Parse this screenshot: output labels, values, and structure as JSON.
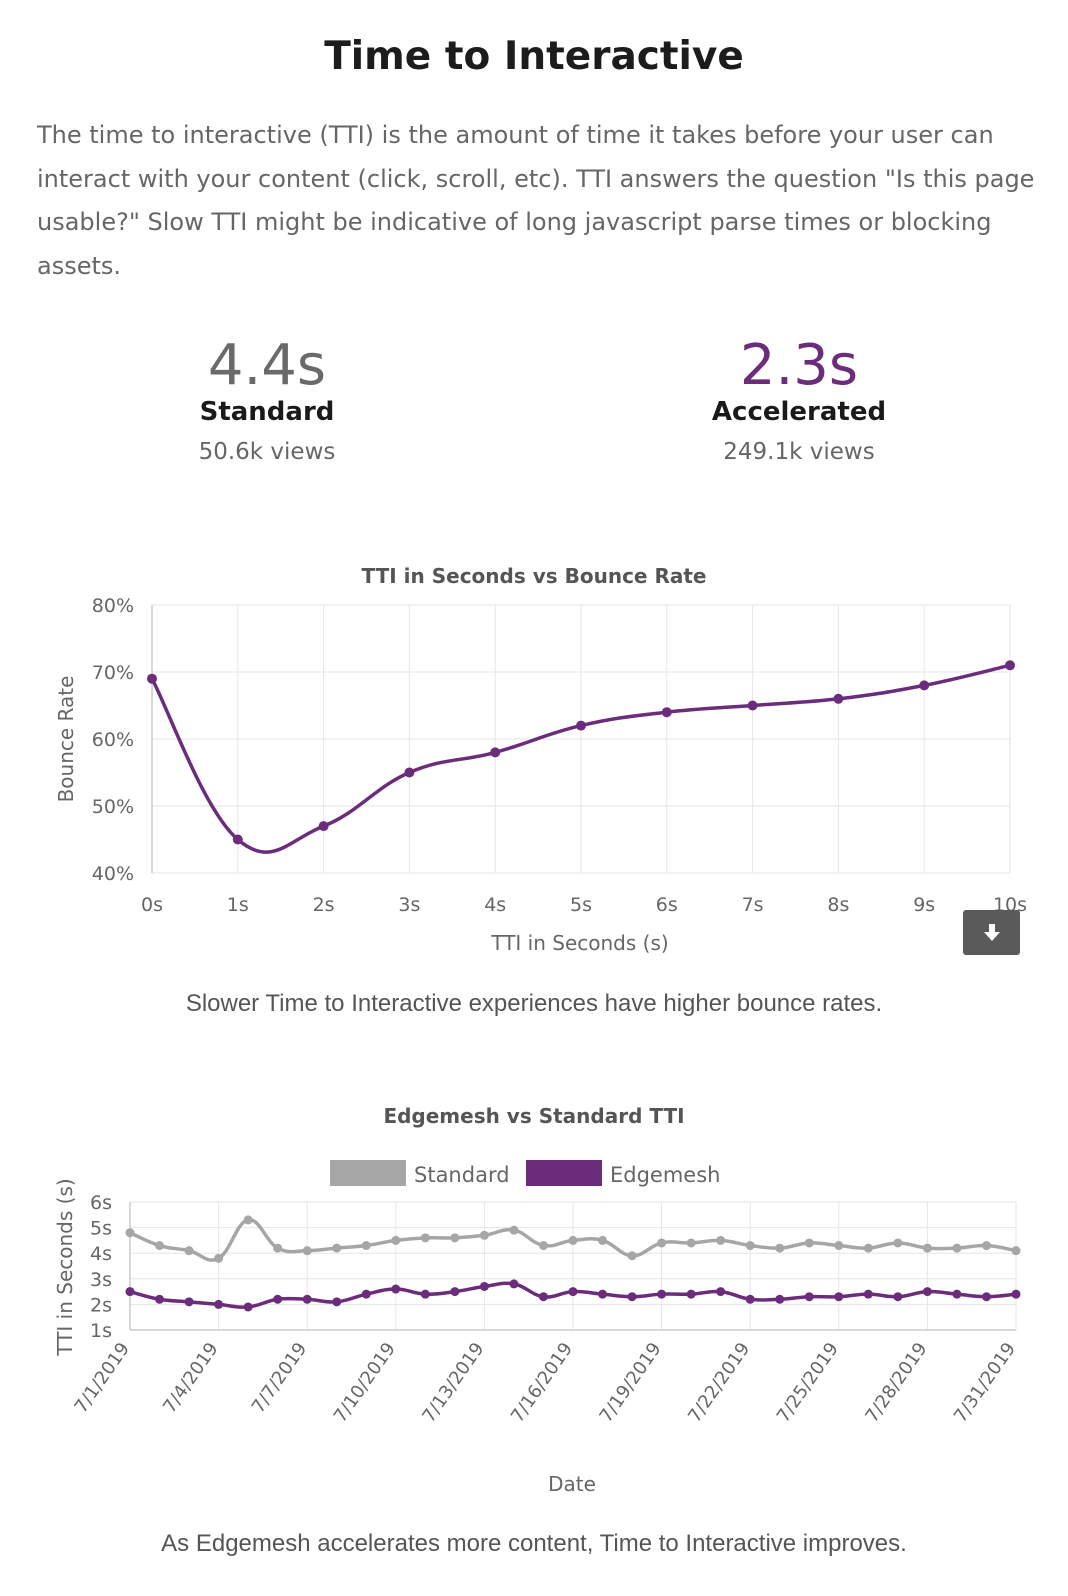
{
  "title": "Time to Interactive",
  "description": "The time to interactive (TTI) is the amount of time it takes before your user can interact with your content (click, scroll, etc). TTI answers the question \"Is this page usable?\" Slow TTI might be indicative of long javascript parse times or blocking assets.",
  "stats": {
    "standard": {
      "value": "4.4s",
      "label": "Standard",
      "views": "50.6k views"
    },
    "accelerated": {
      "value": "2.3s",
      "label": "Accelerated",
      "views": "249.1k views"
    }
  },
  "colors": {
    "accent": "#6b2d7b",
    "standard": "#a6a6a6",
    "grid": "#e6e6e6",
    "axis": "#cccccc"
  },
  "download_icon": "download-icon",
  "captions": {
    "bounce": "Slower Time to Interactive experiences have higher bounce rates.",
    "tti": "As Edgemesh accelerates more content, Time to Interactive improves."
  },
  "chart_data": [
    {
      "type": "line",
      "title": "TTI in Seconds vs Bounce Rate",
      "xlabel": "TTI in Seconds (s)",
      "ylabel": "Bounce Rate",
      "x": [
        0,
        1,
        2,
        3,
        4,
        5,
        6,
        7,
        8,
        9,
        10
      ],
      "x_tick_labels": [
        "0s",
        "1s",
        "2s",
        "3s",
        "4s",
        "5s",
        "6s",
        "7s",
        "8s",
        "9s",
        "10s"
      ],
      "y_tick_labels": [
        "80%",
        "70%",
        "60%",
        "50%",
        "40%"
      ],
      "ylim": [
        40,
        80
      ],
      "grid": true,
      "series": [
        {
          "values": [
            69,
            45,
            47,
            55,
            58,
            62,
            64,
            65,
            66,
            68,
            71
          ]
        }
      ]
    },
    {
      "type": "line",
      "title": "Edgemesh vs Standard TTI",
      "xlabel": "Date",
      "ylabel": "TTI in Seconds (s)",
      "legend": "top",
      "x": [
        "7/1/2019",
        "7/2/2019",
        "7/3/2019",
        "7/4/2019",
        "7/5/2019",
        "7/6/2019",
        "7/7/2019",
        "7/8/2019",
        "7/9/2019",
        "7/10/2019",
        "7/11/2019",
        "7/12/2019",
        "7/13/2019",
        "7/14/2019",
        "7/15/2019",
        "7/16/2019",
        "7/17/2019",
        "7/18/2019",
        "7/19/2019",
        "7/20/2019",
        "7/21/2019",
        "7/22/2019",
        "7/23/2019",
        "7/24/2019",
        "7/25/2019",
        "7/26/2019",
        "7/27/2019",
        "7/28/2019",
        "7/29/2019",
        "7/30/2019",
        "7/31/2019"
      ],
      "x_tick_labels": [
        "7/1/2019",
        "7/4/2019",
        "7/7/2019",
        "7/10/2019",
        "7/13/2019",
        "7/16/2019",
        "7/19/2019",
        "7/22/2019",
        "7/25/2019",
        "7/28/2019",
        "7/31/2019"
      ],
      "y_tick_labels": [
        "6s",
        "5s",
        "4s",
        "3s",
        "2s",
        "1s"
      ],
      "ylim": [
        1,
        6
      ],
      "grid": true,
      "series": [
        {
          "name": "Standard",
          "color": "#a6a6a6",
          "values": [
            4.8,
            4.3,
            4.1,
            3.8,
            5.3,
            4.2,
            4.1,
            4.2,
            4.3,
            4.5,
            4.6,
            4.6,
            4.7,
            4.9,
            4.3,
            4.5,
            4.5,
            3.9,
            4.4,
            4.4,
            4.5,
            4.3,
            4.2,
            4.4,
            4.3,
            4.2,
            4.4,
            4.2,
            4.2,
            4.3,
            4.1
          ]
        },
        {
          "name": "Edgemesh",
          "color": "#6b2d7b",
          "values": [
            2.5,
            2.2,
            2.1,
            2.0,
            1.9,
            2.2,
            2.2,
            2.1,
            2.4,
            2.6,
            2.4,
            2.5,
            2.7,
            2.8,
            2.3,
            2.5,
            2.4,
            2.3,
            2.4,
            2.4,
            2.5,
            2.2,
            2.2,
            2.3,
            2.3,
            2.4,
            2.3,
            2.5,
            2.4,
            2.3,
            2.4
          ]
        }
      ]
    }
  ]
}
